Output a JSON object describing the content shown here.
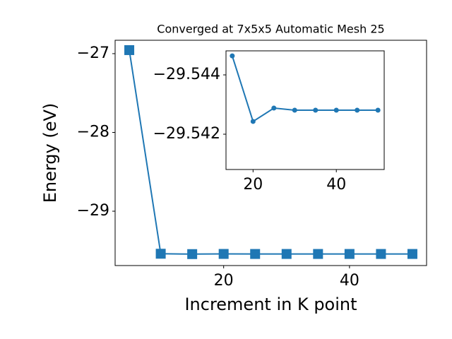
{
  "chart_data": [
    {
      "type": "line",
      "title": "Converged at 7x5x5 Automatic Mesh 25",
      "x_label": "Increment in K point",
      "y_label": "Energy (eV)",
      "x": [
        5,
        10,
        15,
        20,
        25,
        30,
        35,
        40,
        45,
        50
      ],
      "series": [
        {
          "color": "#1f77b4",
          "marker": "square",
          "values": [
            -26.955,
            -29.54,
            -29.5446,
            -29.5424,
            -29.5429,
            -29.5428,
            -29.5428,
            -29.5428,
            -29.5428,
            -29.5428
          ]
        }
      ],
      "xlim": [
        2.75,
        52.25
      ],
      "xticks": [
        20,
        40
      ],
      "ylim": [
        -29.69,
        -26.83
      ],
      "yticks": [
        {
          "value": -29,
          "label": "−29"
        },
        {
          "value": -28,
          "label": "−28"
        },
        {
          "value": -27,
          "label": "−27"
        }
      ]
    },
    {
      "type": "line",
      "x": [
        15,
        20,
        25,
        30,
        35,
        40,
        45,
        50
      ],
      "series": [
        {
          "color": "#1f77b4",
          "marker": "circle",
          "values": [
            -29.54464,
            -29.54243,
            -29.54288,
            -29.54281,
            -29.54281,
            -29.54281,
            -29.54281,
            -29.54281
          ]
        }
      ],
      "xlim": [
        13.5,
        51.5
      ],
      "xticks": [
        20,
        40
      ],
      "ylim": [
        -29.54081,
        -29.54481
      ],
      "yticks": [
        {
          "value": -29.542,
          "label": "−29.542"
        },
        {
          "value": -29.544,
          "label": "−29.544"
        }
      ]
    }
  ]
}
